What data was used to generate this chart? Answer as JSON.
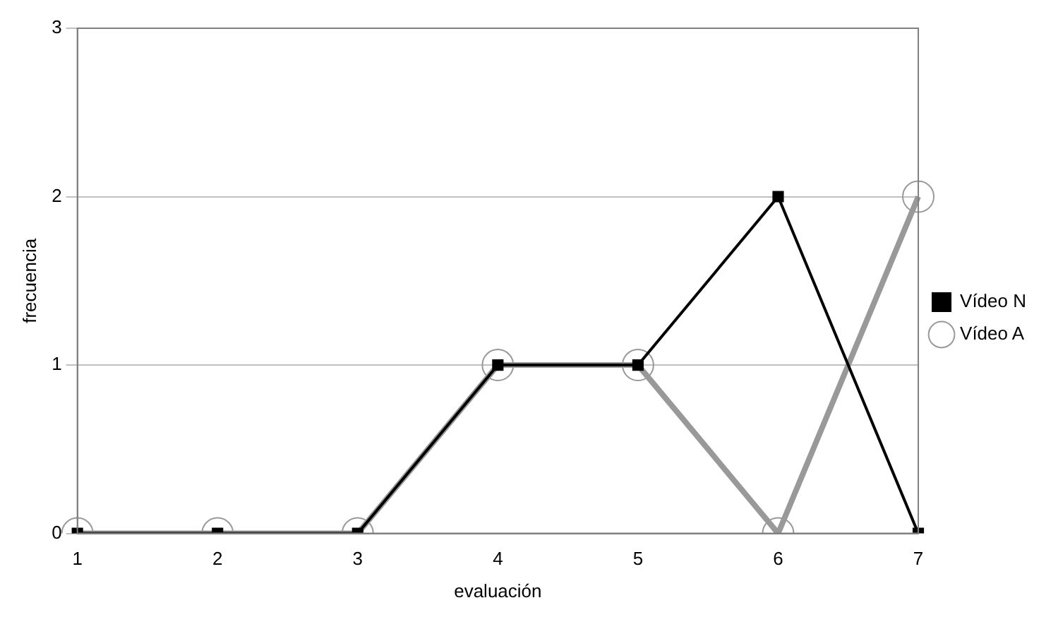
{
  "chart_data": {
    "type": "line",
    "xlabel": "evaluación",
    "ylabel": "frecuencia",
    "categories": [
      "1",
      "2",
      "3",
      "4",
      "5",
      "6",
      "7"
    ],
    "ylim": [
      0,
      3
    ],
    "yticks": [
      0,
      1,
      2,
      3
    ],
    "grid": "y",
    "legend": "right",
    "series": [
      {
        "name": "Vídeo N",
        "color": "#000000",
        "marker": "square",
        "values": [
          0,
          0,
          0,
          1,
          1,
          2,
          0
        ]
      },
      {
        "name": "Vídeo A",
        "color": "#999999",
        "marker": "circle",
        "values": [
          0,
          0,
          0,
          1,
          1,
          0,
          2
        ]
      }
    ]
  }
}
